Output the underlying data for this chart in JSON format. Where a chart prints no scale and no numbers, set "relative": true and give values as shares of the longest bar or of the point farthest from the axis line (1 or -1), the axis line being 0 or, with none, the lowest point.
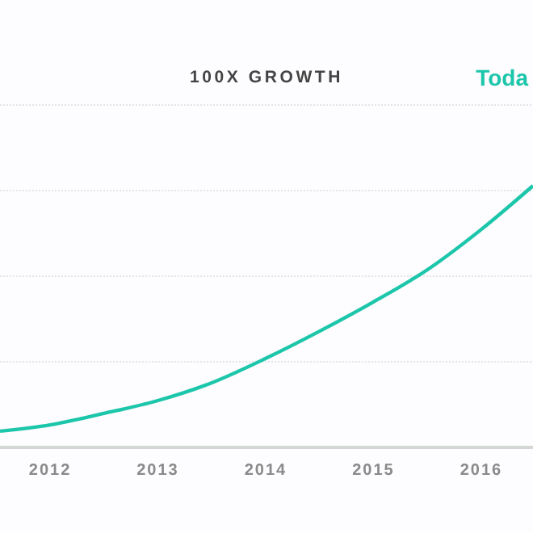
{
  "chart_data": {
    "type": "line",
    "title": "100X GROWTH",
    "relative": true,
    "x": [
      2011.535,
      2012,
      2012.5,
      2013,
      2013.5,
      2014,
      2014.5,
      2015,
      2015.5,
      2016,
      2016.48
    ],
    "xlim": [
      2011.535,
      2016.48
    ],
    "xticks": [
      2012,
      2013,
      2014,
      2015,
      2016
    ],
    "series": [
      {
        "color": "#1cc6aa",
        "values": [
          0.062,
          0.086,
          0.13,
          0.179,
          0.247,
          0.34,
          0.444,
          0.556,
          0.679,
          0.833,
          1
        ]
      }
    ],
    "grid": "y",
    "annotations": [
      "Toda"
    ],
    "marker": "none",
    "line_style": "solid"
  }
}
